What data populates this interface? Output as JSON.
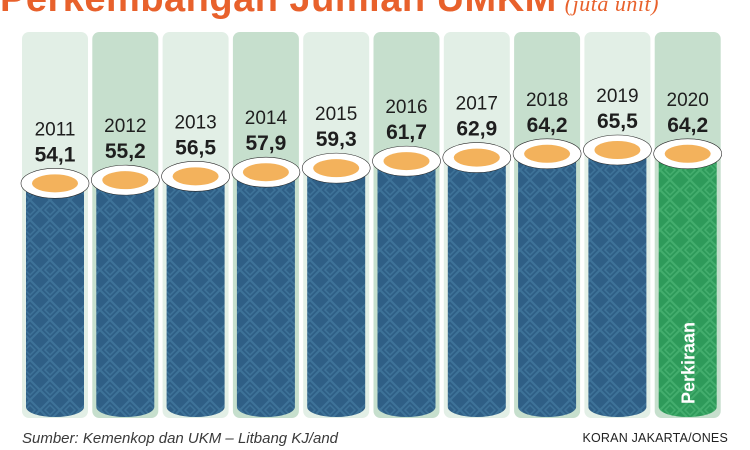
{
  "chart_data": {
    "type": "bar",
    "title": "Perkembangan Jumlah UMKM",
    "unit": "(juta unit)",
    "categories": [
      "2011",
      "2012",
      "2013",
      "2014",
      "2015",
      "2016",
      "2017",
      "2018",
      "2019",
      "2020"
    ],
    "values": [
      54.1,
      55.2,
      56.5,
      57.9,
      59.3,
      61.7,
      62.9,
      64.2,
      65.5,
      64.2
    ],
    "value_labels": [
      "54,1",
      "55,2",
      "56,5",
      "57,9",
      "59,3",
      "61,7",
      "62,9",
      "64,2",
      "65,5",
      "64,2"
    ],
    "highlight_index": 9,
    "highlight_label": "Perkiraan",
    "colors": {
      "title": "#e8612c",
      "bar": "#2f5f86",
      "bar_highlight": "#2e9a5a",
      "cap": "#f3b25c",
      "panel_light": "#e2efe6",
      "panel_dark": "#c6dfcd"
    }
  },
  "footer": {
    "source": "Sumber: Kemenkop dan UKM – Litbang KJ/and",
    "credit": "KORAN JAKARTA/ONES"
  }
}
